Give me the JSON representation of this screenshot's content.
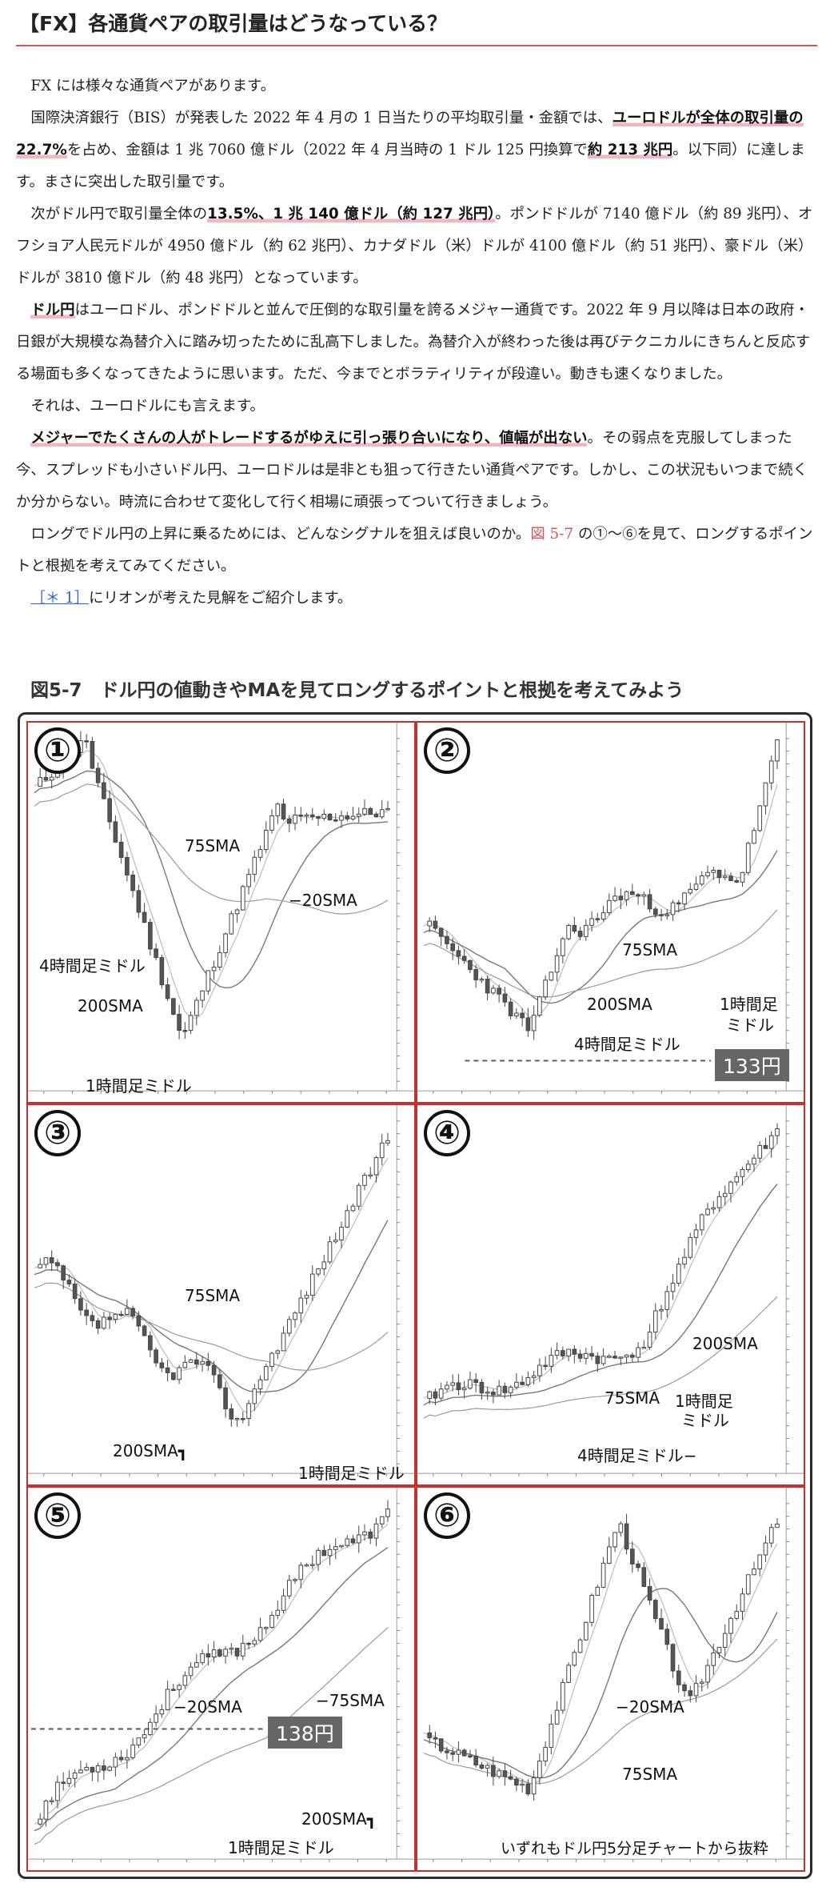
{
  "title": "【FX】各通貨ペアの取引量はどうなっている？",
  "paragraphs": [
    [
      {
        "t": "FX には様々な通貨ペアがあります。"
      }
    ],
    [
      {
        "t": "国際決済銀行（BIS）が発表した 2022 年 4 月の 1 日当たりの平均取引量・金額では、"
      },
      {
        "t": "ユーロドルが全体の取引量の 22.7%",
        "em": true
      },
      {
        "t": "を占め、金額は 1 兆 7060 億ドル（2022 年 4 月当時の 1 ドル 125 円換算で"
      },
      {
        "t": "約 213 兆円",
        "em": true
      },
      {
        "t": "。以下同）に達します。まさに突出した取引量です。"
      }
    ],
    [
      {
        "t": "次がドル円で取引量全体の"
      },
      {
        "t": "13.5%、1 兆 140 億ドル（約 127 兆円）",
        "em": true
      },
      {
        "t": "。ポンドドルが 7140 億ドル（約 89 兆円）、オフショア人民元ドルが 4950 億ドル（約 62 兆円）、カナダドル（米）ドルが 4100 億ドル（約 51 兆円）、豪ドル（米）ドルが 3810 億ドル（約 48 兆円）となっています。"
      }
    ],
    [
      {
        "t": "ドル円",
        "em": true
      },
      {
        "t": "はユーロドル、ポンドドルと並んで圧倒的な取引量を誇るメジャー通貨です。2022 年 9 月以降は日本の政府・日銀が大規模な為替介入に踏み切ったために乱高下しました。為替介入が終わった後は再びテクニカルにきちんと反応する場面も多くなってきたように思います。ただ、今までとボラティリティが段違い。動きも速くなりました。"
      }
    ],
    [
      {
        "t": "それは、ユーロドルにも言えます。"
      }
    ],
    [
      {
        "t": "メジャーでたくさんの人がトレードするがゆえに引っ張り合いになり、値幅が出ない",
        "em": true
      },
      {
        "t": "。その弱点を克服してしまった今、スプレッドも小さいドル円、ユーロドルは是非とも狙って行きたい通貨ペアです。しかし、この状況もいつまで続くか分からない。時流に合わせて変化して行く相場に頑張ってついて行きましょう。"
      }
    ],
    [
      {
        "t": "ロングでドル円の上昇に乗るためには、どんなシグナルを狙えば良いのか。"
      },
      {
        "t": "図 5-7",
        "ref": true
      },
      {
        "t": " の①〜⑥を見て、ロングするポイントと根拠を考えてみてください。"
      }
    ],
    [
      {
        "t": "［＊ 1］",
        "link": true
      },
      {
        "t": "にリオンが考えた見解をご紹介します。"
      }
    ]
  ],
  "figure": {
    "title": "図5-7　ドル円の値動きやMAを見てロングするポイントと根拠を考えてみよう",
    "panels": [
      {
        "num": "①",
        "labels": [
          "75SMA",
          "−20SMA",
          "4時間足ミドル",
          "200SMA",
          "1時間足ミドル"
        ]
      },
      {
        "num": "②",
        "labels": [
          "75SMA",
          "200SMA",
          "4時間足ミドル",
          "1時間足",
          "ミドル"
        ],
        "price": "133円"
      },
      {
        "num": "③",
        "labels": [
          "75SMA",
          "200SMA┓",
          "1時間足ミドル"
        ]
      },
      {
        "num": "④",
        "labels": [
          "200SMA",
          "75SMA",
          "1時間足",
          "ミドル",
          "4時間足ミドル−"
        ]
      },
      {
        "num": "⑤",
        "labels": [
          "−20SMA",
          "−75SMA",
          "200SMA┓",
          "1時間足ミドル"
        ],
        "price": "138円"
      },
      {
        "num": "⑥",
        "labels": [
          "−20SMA",
          "75SMA",
          "いずれもドル円5分足チャートから抜粋"
        ]
      }
    ]
  }
}
